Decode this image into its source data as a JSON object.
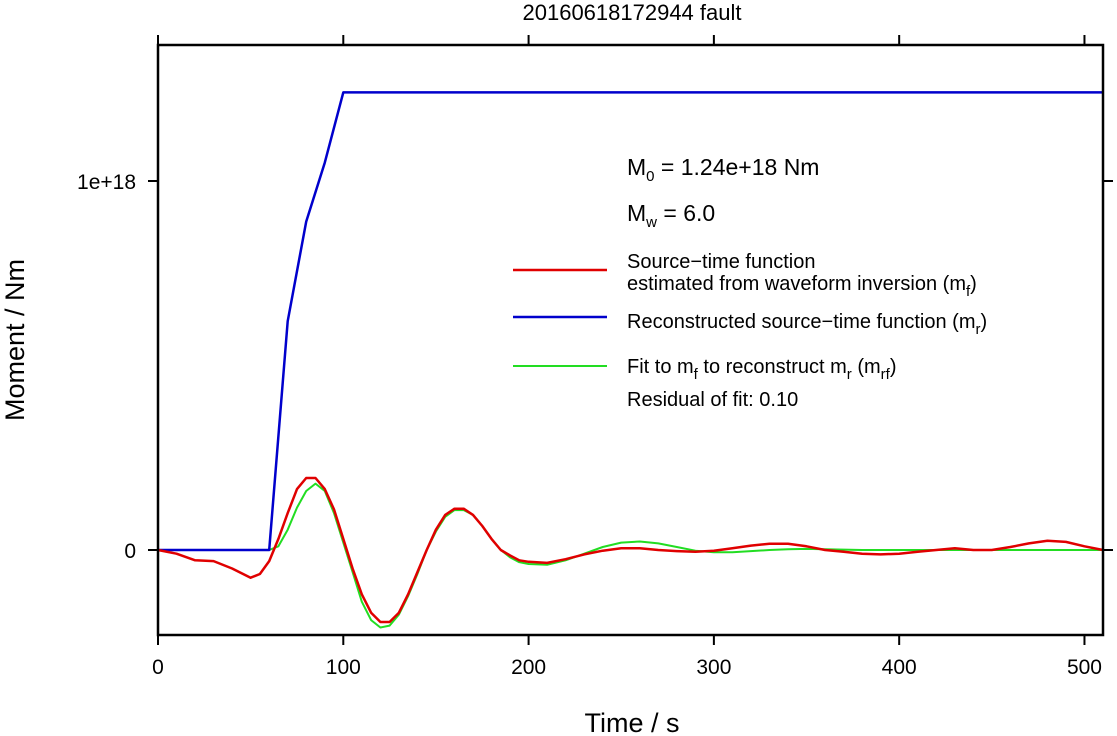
{
  "chart_data": {
    "type": "line",
    "title": "20160618172944 fault",
    "xlabel": "Time / s",
    "ylabel": "Moment / Nm",
    "xlim": [
      0,
      510
    ],
    "ylim": [
      -2.3e+17,
      1.37e+18
    ],
    "x_ticks": [
      0,
      100,
      200,
      300,
      400,
      500
    ],
    "x_tick_labels": [
      "0",
      "100",
      "200",
      "300",
      "400",
      "500"
    ],
    "y_ticks": [
      0,
      1e+18
    ],
    "y_tick_labels": [
      "0",
      "1e+18"
    ],
    "grid": false,
    "legend_position": "center-right",
    "annotations": {
      "m0": {
        "symbol": "M",
        "sub": "0",
        "text": " = 1.24e+18 Nm"
      },
      "mw": {
        "symbol": "M",
        "sub": "w",
        "text": " = 6.0"
      },
      "residual": "Residual of fit: 0.10"
    },
    "series": [
      {
        "id": "mf",
        "legend": [
          {
            "text": "Source−time function"
          },
          {
            "text": "estimated from waveform inversion (m",
            "sub": "f",
            "after": ")"
          }
        ],
        "color": "#e00000",
        "x": [
          0,
          10,
          20,
          30,
          40,
          50,
          55,
          60,
          65,
          70,
          75,
          80,
          85,
          90,
          95,
          100,
          105,
          110,
          115,
          120,
          125,
          130,
          135,
          140,
          145,
          150,
          155,
          160,
          165,
          170,
          175,
          180,
          185,
          190,
          195,
          200,
          210,
          220,
          230,
          240,
          250,
          260,
          270,
          280,
          290,
          300,
          310,
          320,
          330,
          340,
          350,
          360,
          370,
          380,
          390,
          400,
          410,
          420,
          430,
          440,
          450,
          460,
          470,
          480,
          490,
          500,
          510
        ],
        "values": [
          0,
          -1e+16,
          -2.8e+16,
          -3e+16,
          -5e+16,
          -7.5e+16,
          -6.5e+16,
          -3e+16,
          3e+16,
          1e+17,
          1.65e+17,
          1.95e+17,
          1.95e+17,
          1.65e+17,
          1.1e+17,
          3e+16,
          -5e+16,
          -1.2e+17,
          -1.7e+17,
          -1.95e+17,
          -1.95e+17,
          -1.7e+17,
          -1.2e+17,
          -6e+16,
          0,
          5.5e+16,
          9.5e+16,
          1.12e+17,
          1.12e+17,
          9.5e+16,
          6.5e+16,
          3e+16,
          0,
          -1.5e+16,
          -2.8e+16,
          -3.2e+16,
          -3.5e+16,
          -2.5e+16,
          -1.2e+16,
          -2000000000000000.0,
          5000000000000000.0,
          5000000000000000.0,
          0,
          -3000000000000000.0,
          -5000000000000000.0,
          -2000000000000000.0,
          5000000000000000.0,
          1.2e+16,
          1.7e+16,
          1.7e+16,
          1e+16,
          0,
          -5000000000000000.0,
          -1e+16,
          -1.2e+16,
          -1e+16,
          -5000000000000000.0,
          0,
          5000000000000000.0,
          0,
          0,
          8000000000000000.0,
          1.8e+16,
          2.5e+16,
          2.2e+16,
          1e+16,
          0
        ]
      },
      {
        "id": "mr",
        "legend": [
          {
            "text": "Reconstructed source−time function (m",
            "sub": "r",
            "after": ")"
          }
        ],
        "color": "#0000cc",
        "x": [
          0,
          60,
          70,
          80,
          90,
          100,
          510
        ],
        "values": [
          0,
          0,
          6.2e+17,
          8.9e+17,
          1.05e+18,
          1.24e+18,
          1.24e+18
        ]
      },
      {
        "id": "mrf",
        "legend": [
          {
            "text": "Fit to m",
            "sub": "f",
            "after": " to reconstruct m"
          },
          {
            "text": "",
            "sub": "r",
            "after": " (m"
          },
          {
            "text": "",
            "sub": "rf",
            "after": ")"
          }
        ],
        "color": "#22dd22",
        "x": [
          0,
          60,
          65,
          70,
          75,
          80,
          85,
          90,
          95,
          100,
          105,
          110,
          115,
          120,
          125,
          130,
          135,
          140,
          145,
          150,
          155,
          160,
          165,
          170,
          175,
          180,
          185,
          190,
          195,
          200,
          210,
          220,
          230,
          240,
          250,
          260,
          270,
          280,
          290,
          300,
          310,
          320,
          330,
          340,
          350,
          360,
          380,
          400,
          420,
          440,
          460,
          480,
          500,
          510
        ],
        "values": [
          0,
          0,
          1e+16,
          5.5e+16,
          1.15e+17,
          1.6e+17,
          1.8e+17,
          1.6e+17,
          1e+17,
          2e+16,
          -6e+16,
          -1.4e+17,
          -1.9e+17,
          -2.1e+17,
          -2.05e+17,
          -1.75e+17,
          -1.25e+17,
          -6.5e+16,
          0,
          5e+16,
          9e+16,
          1.08e+17,
          1.08e+17,
          9.5e+16,
          6.5e+16,
          3e+16,
          0,
          -2e+16,
          -3.3e+16,
          -3.8e+16,
          -4e+16,
          -2.8e+16,
          -1e+16,
          8000000000000000.0,
          2e+16,
          2.3e+16,
          1.8e+16,
          8000000000000000.0,
          -2000000000000000.0,
          -6000000000000000.0,
          -6000000000000000.0,
          -3000000000000000.0,
          0,
          2000000000000000.0,
          3000000000000000.0,
          2000000000000000.0,
          0,
          0,
          0,
          0,
          0,
          0,
          0,
          0
        ]
      }
    ]
  }
}
